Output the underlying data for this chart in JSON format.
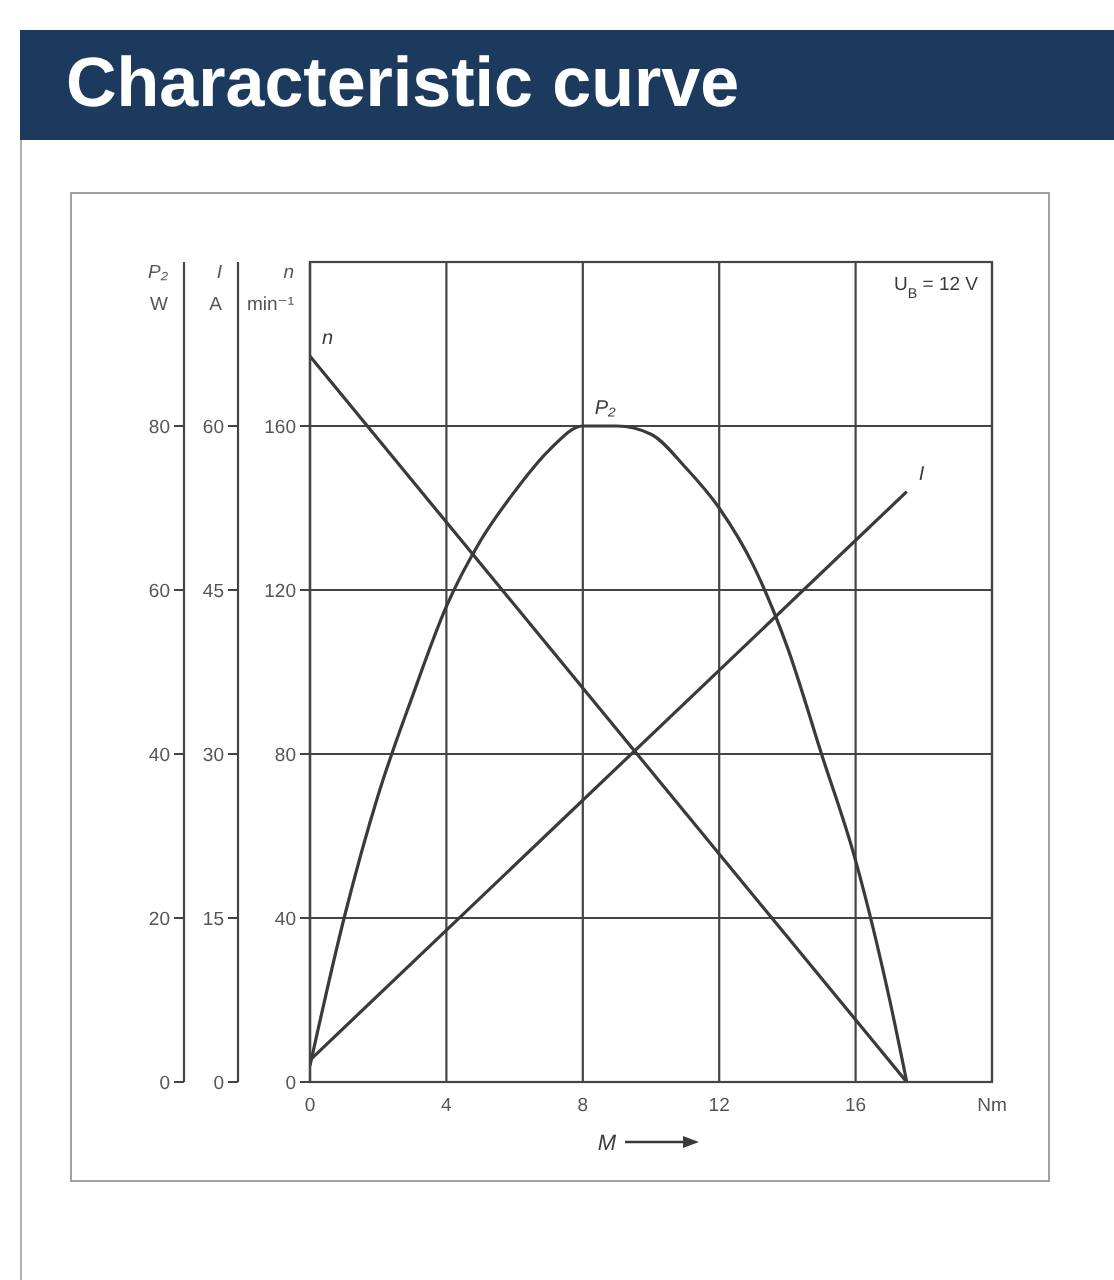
{
  "chart_data": {
    "type": "line",
    "title": "Characteristic curve",
    "xlabel": "M",
    "ylabel": "n\nmin⁻¹",
    "y2label": "I\nA",
    "y3label": "P₂\nW",
    "xlim": [
      0,
      20
    ],
    "xticks": [
      0,
      4,
      8,
      12,
      16,
      {
        "value": 20,
        "label": "Nm"
      }
    ],
    "ylim": [
      0,
      200
    ],
    "yticks": [
      0,
      40,
      80,
      120,
      160
    ],
    "y2lim": [
      0,
      75
    ],
    "y2ticks": [
      0,
      15,
      30,
      45,
      60
    ],
    "y3lim": [
      0,
      100
    ],
    "y3ticks": [
      0,
      20,
      40,
      60,
      80
    ],
    "grid": true,
    "marker": "none",
    "annotations": [
      "U$_{B}$ = 12 V"
    ],
    "series": [
      {
        "name": "n",
        "color": "#3a3a3a",
        "x": [
          0,
          17.5
        ],
        "values": [
          177,
          0
        ]
      },
      {
        "name": "P₂",
        "color": "#3a3a3a",
        "axis": "y3",
        "x": [
          0,
          1,
          2,
          3,
          4,
          5,
          6,
          7,
          8,
          9,
          10,
          11,
          12,
          13,
          14,
          15,
          16,
          17,
          17.5
        ],
        "values": [
          2,
          20,
          35,
          47,
          58,
          66,
          72,
          77,
          80,
          80,
          79,
          75,
          70,
          63,
          53,
          40,
          27,
          10,
          0
        ]
      },
      {
        "name": "I",
        "color": "#3a3a3a",
        "axis": "y2",
        "x": [
          0,
          17.5
        ],
        "values": [
          2,
          54
        ]
      }
    ]
  }
}
